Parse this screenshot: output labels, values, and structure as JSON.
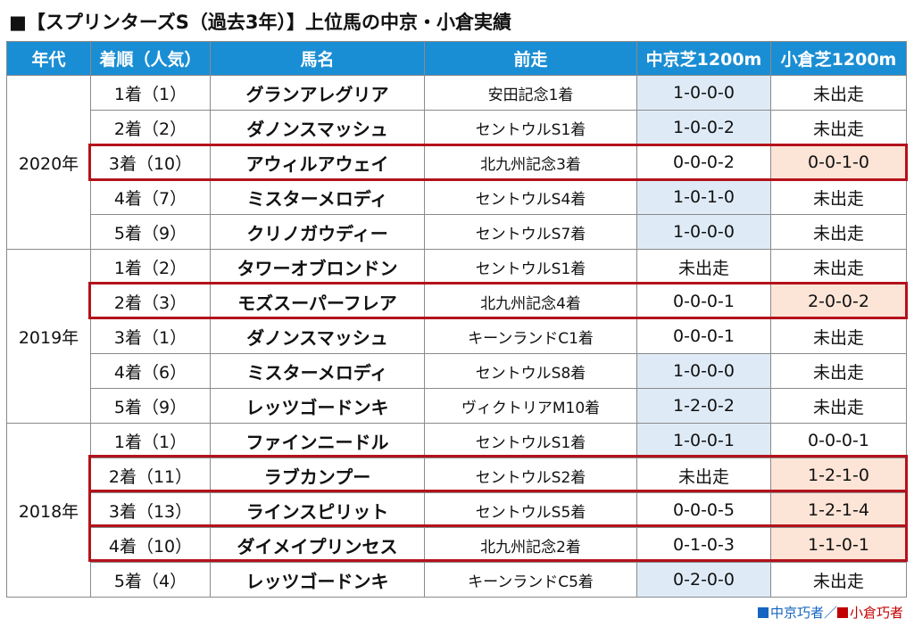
{
  "title": "■【スプリンターズS（過去3年）】上位馬の中京・小倉実績",
  "headers": [
    "年代",
    "着順（人気）",
    "馬名",
    "前走",
    "中京芝1200m",
    "小倉芝1200m"
  ],
  "colors": {
    "header": "#1a8ed4",
    "chukyo_fill": "#deebf7",
    "kokura_fill": "#fce4d6",
    "highlight": "#b4121b",
    "legend_blue": "#1565c0",
    "legend_red": "#c00000"
  },
  "years": [
    {
      "year": "2020年",
      "rows": [
        {
          "rank": "1着（1）",
          "horse": "グランアレグリア",
          "prev": "安田記念1着",
          "chukyo": "1-0-0-0",
          "kokura": "未出走",
          "chukyo_fill": "blue",
          "kokura_fill": ""
        },
        {
          "rank": "2着（2）",
          "horse": "ダノンスマッシュ",
          "prev": "セントウルS1着",
          "chukyo": "1-0-0-2",
          "kokura": "未出走",
          "chukyo_fill": "blue",
          "kokura_fill": ""
        },
        {
          "rank": "3着（10）",
          "horse": "アウィルアウェイ",
          "prev": "北九州記念3着",
          "chukyo": "0-0-0-2",
          "kokura": "0-0-1-0",
          "chukyo_fill": "",
          "kokura_fill": "peach"
        },
        {
          "rank": "4着（7）",
          "horse": "ミスターメロディ",
          "prev": "セントウルS4着",
          "chukyo": "1-0-1-0",
          "kokura": "未出走",
          "chukyo_fill": "blue",
          "kokura_fill": ""
        },
        {
          "rank": "5着（9）",
          "horse": "クリノガウディー",
          "prev": "セントウルS7着",
          "chukyo": "1-0-0-0",
          "kokura": "未出走",
          "chukyo_fill": "blue",
          "kokura_fill": ""
        }
      ]
    },
    {
      "year": "2019年",
      "rows": [
        {
          "rank": "1着（2）",
          "horse": "タワーオブロンドン",
          "prev": "セントウルS1着",
          "chukyo": "未出走",
          "kokura": "未出走",
          "chukyo_fill": "",
          "kokura_fill": ""
        },
        {
          "rank": "2着（3）",
          "horse": "モズスーパーフレア",
          "prev": "北九州記念4着",
          "chukyo": "0-0-0-1",
          "kokura": "2-0-0-2",
          "chukyo_fill": "",
          "kokura_fill": "peach"
        },
        {
          "rank": "3着（1）",
          "horse": "ダノンスマッシュ",
          "prev": "キーンランドC1着",
          "chukyo": "0-0-0-1",
          "kokura": "未出走",
          "chukyo_fill": "",
          "kokura_fill": ""
        },
        {
          "rank": "4着（6）",
          "horse": "ミスターメロディ",
          "prev": "セントウルS8着",
          "chukyo": "1-0-0-0",
          "kokura": "未出走",
          "chukyo_fill": "blue",
          "kokura_fill": ""
        },
        {
          "rank": "5着（9）",
          "horse": "レッツゴードンキ",
          "prev": "ヴィクトリアM10着",
          "chukyo": "1-2-0-2",
          "kokura": "未出走",
          "chukyo_fill": "blue",
          "kokura_fill": ""
        }
      ]
    },
    {
      "year": "2018年",
      "rows": [
        {
          "rank": "1着（1）",
          "horse": "ファインニードル",
          "prev": "セントウルS1着",
          "chukyo": "1-0-0-1",
          "kokura": "0-0-0-1",
          "chukyo_fill": "blue",
          "kokura_fill": ""
        },
        {
          "rank": "2着（11）",
          "horse": "ラブカンプー",
          "prev": "セントウルS2着",
          "chukyo": "未出走",
          "kokura": "1-2-1-0",
          "chukyo_fill": "",
          "kokura_fill": "peach"
        },
        {
          "rank": "3着（13）",
          "horse": "ラインスピリット",
          "prev": "セントウルS5着",
          "chukyo": "0-0-0-5",
          "kokura": "1-2-1-4",
          "chukyo_fill": "",
          "kokura_fill": "peach"
        },
        {
          "rank": "4着（10）",
          "horse": "ダイメイプリンセス",
          "prev": "北九州記念2着",
          "chukyo": "0-1-0-3",
          "kokura": "1-1-0-1",
          "chukyo_fill": "",
          "kokura_fill": "peach"
        },
        {
          "rank": "5着（4）",
          "horse": "レッツゴードンキ",
          "prev": "キーンランドC5着",
          "chukyo": "0-2-0-0",
          "kokura": "未出走",
          "chukyo_fill": "blue",
          "kokura_fill": ""
        }
      ]
    }
  ],
  "legend": {
    "blue_label": "中京巧者",
    "separator": "／",
    "red_label": "小倉巧者"
  }
}
